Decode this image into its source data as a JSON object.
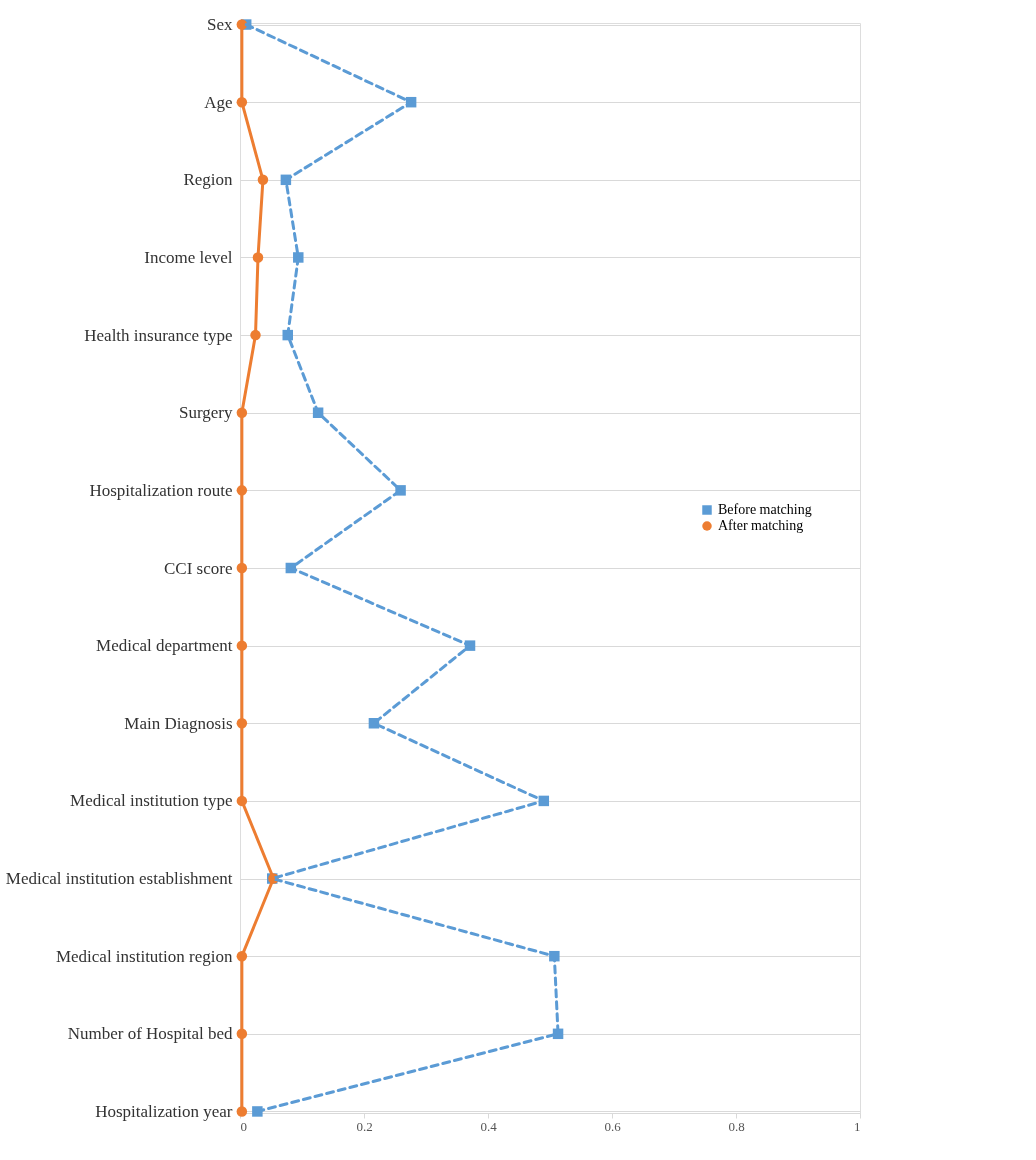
{
  "chart_data": {
    "type": "line",
    "orientation": "horizontal",
    "categories": [
      "Sex",
      "Age",
      "Region",
      "Income level",
      "Health insurance type",
      "Surgery",
      "Hospitalization route",
      "CCI score",
      "Medical department",
      "Main Diagnosis",
      "Medical institution type",
      "Medical institution establishment",
      "Medical institution region",
      "Number of Hospital bed",
      "Hospitalization year"
    ],
    "series": [
      {
        "name": "Before matching",
        "color": "#5b9bd5",
        "marker": "square",
        "line_style": "dashed",
        "values": [
          0.01,
          0.276,
          0.074,
          0.094,
          0.077,
          0.126,
          0.259,
          0.082,
          0.371,
          0.216,
          0.49,
          0.052,
          0.507,
          0.513,
          0.028
        ]
      },
      {
        "name": "After matching",
        "color": "#ed7d31",
        "marker": "circle",
        "line_style": "solid",
        "values": [
          0.003,
          0.003,
          0.037,
          0.029,
          0.025,
          0.003,
          0.003,
          0.003,
          0.003,
          0.003,
          0.003,
          0.054,
          0.003,
          0.003,
          0.003
        ]
      }
    ],
    "xlim": [
      0,
      1
    ],
    "xticks": [
      0,
      0.2,
      0.4,
      0.6,
      0.8,
      1
    ],
    "grid": "y",
    "legend": "right"
  }
}
